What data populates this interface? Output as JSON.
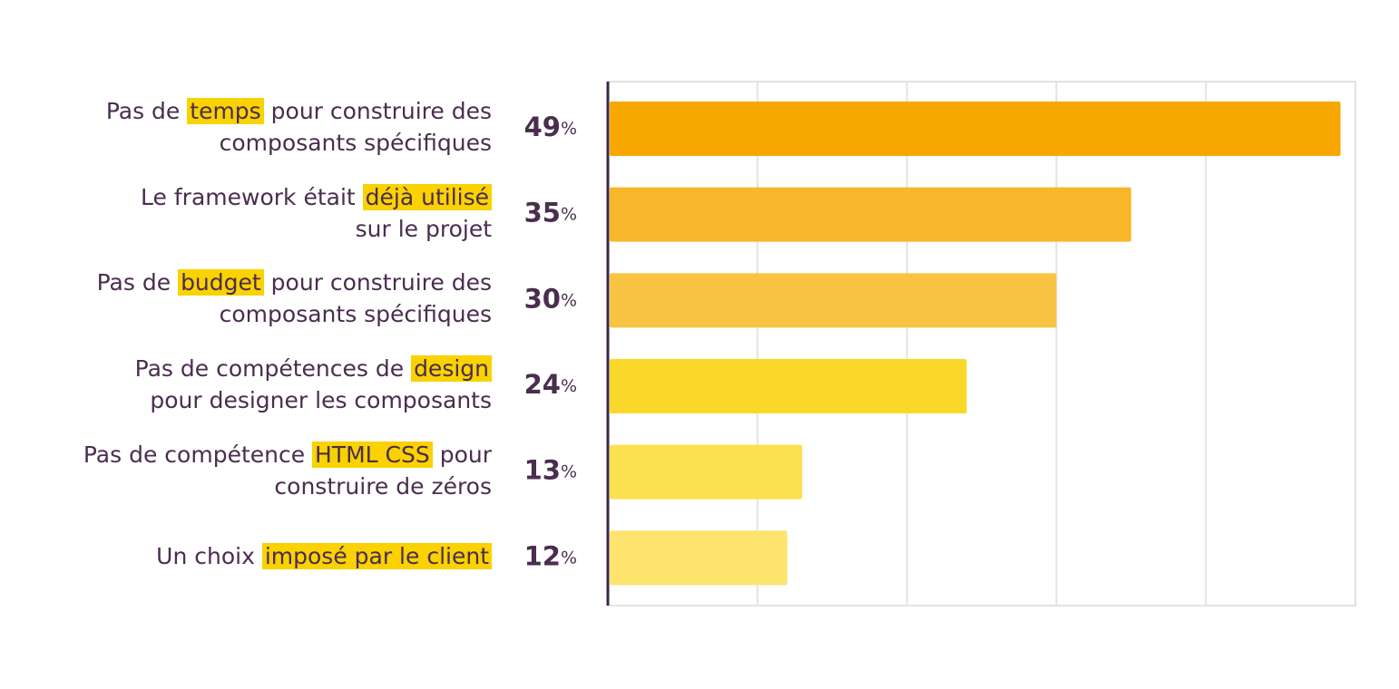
{
  "chart_data": {
    "type": "bar",
    "orientation": "horizontal",
    "categories": [
      [
        [
          "Pas de ",
          "temps",
          " pour construire des"
        ],
        [
          "composants spécifiques"
        ]
      ],
      [
        [
          "Le framework était ",
          "déjà utilisé"
        ],
        [
          "sur le projet"
        ]
      ],
      [
        [
          "Pas de ",
          "budget",
          " pour construire des"
        ],
        [
          "composants spécifiques"
        ]
      ],
      [
        [
          "Pas de compétences de ",
          "design"
        ],
        [
          "pour designer les composants"
        ]
      ],
      [
        [
          "Pas de compétence ",
          "HTML CSS",
          " pour"
        ],
        [
          "construire de zéros"
        ]
      ],
      [
        [
          "Un choix ",
          "imposé par le client"
        ]
      ]
    ],
    "values": [
      49,
      35,
      30,
      24,
      13,
      12
    ],
    "value_labels": [
      "49%",
      "35%",
      "30%",
      "24%",
      "13%",
      "12%"
    ],
    "colors": [
      "#f7a800",
      "#f8b72a",
      "#f9c444",
      "#f9d82a",
      "#fbe050",
      "#fce46e"
    ],
    "highlight_color": "#f9d200",
    "xlim": [
      0,
      50
    ],
    "xticks": [
      0,
      10,
      20,
      30,
      40,
      50
    ],
    "grid": true
  }
}
